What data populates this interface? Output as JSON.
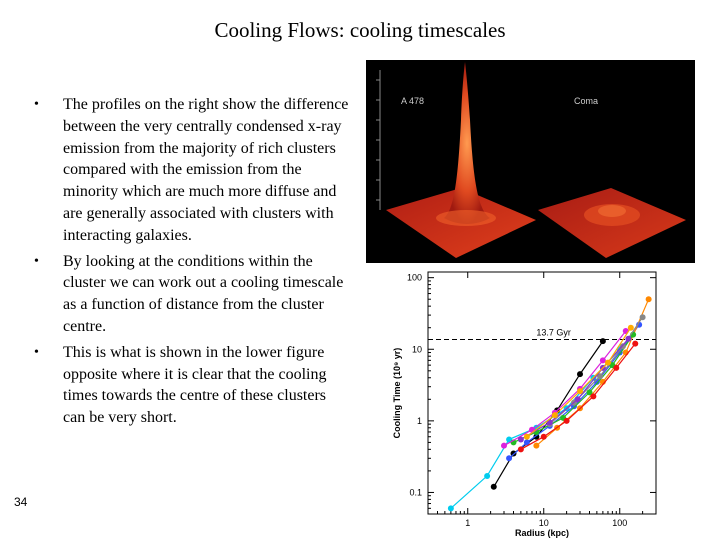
{
  "slide": {
    "title": "Cooling Flows: cooling timescales",
    "bullets": [
      "The profiles on the right show the difference between the very centrally condensed x-ray emission from the majority of rich clusters compared with the emission from the minority which are much more diffuse and are generally associated with clusters with interacting galaxies.",
      "By looking at the conditions within the cluster we can work out a cooling timescale as a function of distance from the cluster centre.",
      "This is what is shown in the lower figure opposite where it is clear that the cooling times towards the centre of these clusters can be very short."
    ],
    "bullet_marker": "•",
    "slide_number": "34"
  },
  "xray_image": {
    "left_label": "A 478",
    "right_label": "Coma",
    "colors": {
      "background": "#000000",
      "surface": "#c0281c",
      "peak": "#f06a30"
    }
  },
  "chart_data": {
    "type": "line",
    "xlabel": "Radius (kpc)",
    "ylabel": "Cooling Time (10⁹ yr)",
    "x_scale": "log",
    "y_scale": "log",
    "xlim": [
      0.3,
      300
    ],
    "ylim": [
      0.05,
      120
    ],
    "x_ticks": [
      "1",
      "10",
      "100"
    ],
    "y_ticks": [
      "100",
      "10",
      "1",
      "0.1"
    ],
    "annotation": {
      "text": "13.7 Gyr",
      "y": 13.7,
      "style": "dashed"
    },
    "series": [
      {
        "color": "#00ccee",
        "x": [
          0.6,
          1.8,
          3.5,
          8,
          20,
          45,
          100
        ],
        "y": [
          0.06,
          0.17,
          0.55,
          0.8,
          1.5,
          4,
          10
        ]
      },
      {
        "color": "#000000",
        "x": [
          2.2,
          4,
          8,
          15,
          30,
          60
        ],
        "y": [
          0.12,
          0.35,
          0.6,
          1.4,
          4.5,
          13
        ]
      },
      {
        "color": "#3355ff",
        "x": [
          3.5,
          6,
          12,
          25,
          50,
          100,
          180
        ],
        "y": [
          0.3,
          0.5,
          0.85,
          1.6,
          3.5,
          9,
          22
        ]
      },
      {
        "color": "#ff8800",
        "x": [
          8,
          15,
          30,
          60,
          120,
          240
        ],
        "y": [
          0.45,
          0.8,
          1.5,
          3.5,
          9,
          50
        ]
      },
      {
        "color": "#22bb22",
        "x": [
          4,
          8,
          18,
          40,
          80,
          150
        ],
        "y": [
          0.5,
          0.7,
          1.1,
          2.5,
          6,
          16
        ]
      },
      {
        "color": "#ee1111",
        "x": [
          5,
          10,
          20,
          45,
          90,
          160
        ],
        "y": [
          0.4,
          0.6,
          1.0,
          2.2,
          5.5,
          12
        ]
      },
      {
        "color": "#dd22dd",
        "x": [
          3,
          7,
          14,
          30,
          60,
          120
        ],
        "y": [
          0.45,
          0.75,
          1.3,
          2.8,
          7,
          18
        ]
      },
      {
        "color": "#888888",
        "x": [
          12,
          25,
          55,
          110,
          200
        ],
        "y": [
          0.9,
          1.8,
          4.2,
          11,
          28
        ]
      },
      {
        "color": "#8833cc",
        "x": [
          5,
          12,
          28,
          60,
          130
        ],
        "y": [
          0.55,
          0.95,
          2.0,
          5.5,
          14
        ]
      },
      {
        "color": "#ffaa00",
        "x": [
          6,
          14,
          30,
          70,
          140
        ],
        "y": [
          0.6,
          1.2,
          2.6,
          6.5,
          20
        ]
      }
    ]
  }
}
